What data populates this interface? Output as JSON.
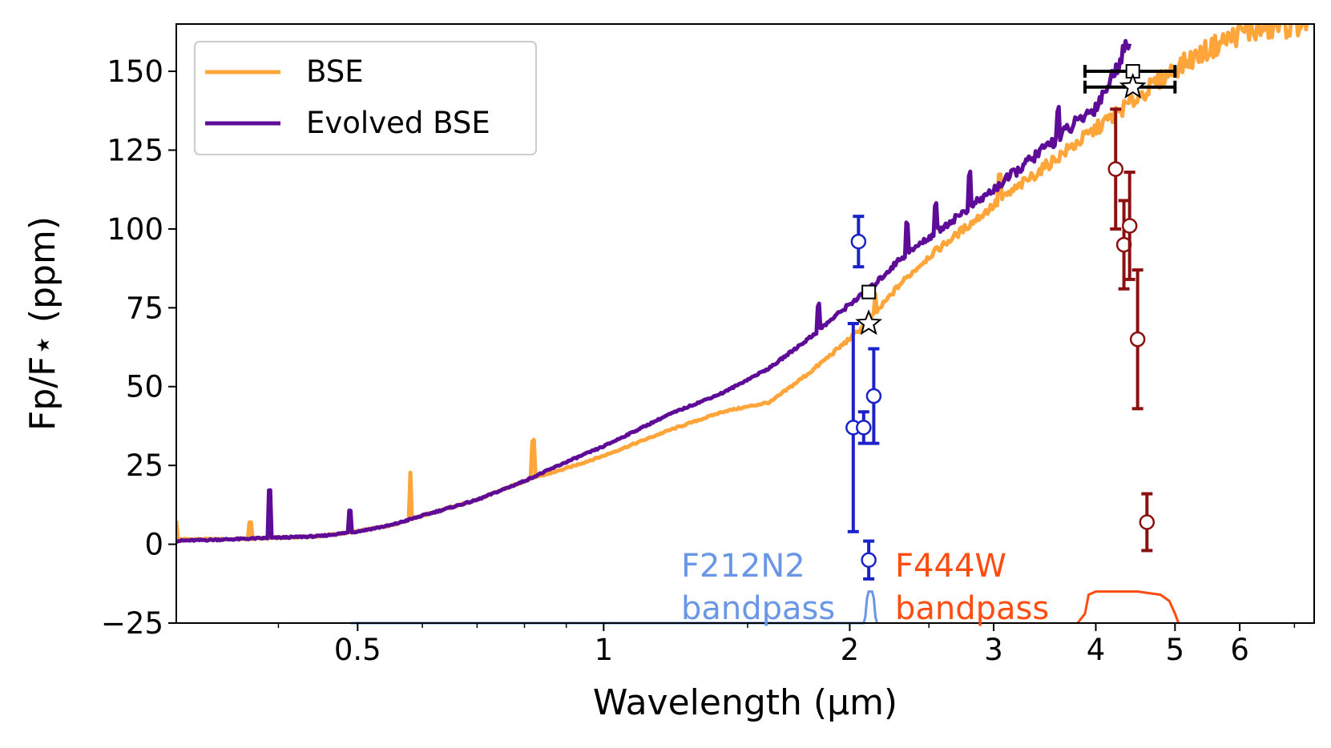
{
  "chart_data": {
    "type": "line",
    "xlabel": "Wavelength (μm)",
    "ylabel": "Fp/F⋆ (ppm)",
    "xscale": "log",
    "xlim": [
      0.3,
      7.4
    ],
    "ylim": [
      -25,
      165
    ],
    "xticks": [
      {
        "v": 0.5,
        "label": "0.5"
      },
      {
        "v": 1,
        "label": "1"
      },
      {
        "v": 2,
        "label": "2"
      },
      {
        "v": 3,
        "label": "3"
      },
      {
        "v": 4,
        "label": "4"
      },
      {
        "v": 5,
        "label": "5"
      },
      {
        "v": 6,
        "label": "6"
      }
    ],
    "yticks": [
      {
        "v": -25,
        "label": "−25"
      },
      {
        "v": 0,
        "label": "0"
      },
      {
        "v": 25,
        "label": "25"
      },
      {
        "v": 50,
        "label": "50"
      },
      {
        "v": 75,
        "label": "75"
      },
      {
        "v": 100,
        "label": "100"
      },
      {
        "v": 125,
        "label": "125"
      },
      {
        "v": 150,
        "label": "150"
      }
    ],
    "grid": false,
    "legend_position": "top-left",
    "series": [
      {
        "name": "BSE",
        "color": "#ffa53a",
        "x": [
          0.3,
          0.35,
          0.4,
          0.45,
          0.5,
          0.55,
          0.6,
          0.7,
          0.8,
          0.9,
          1.0,
          1.2,
          1.4,
          1.6,
          1.8,
          2.0,
          2.1,
          2.2,
          2.3,
          2.5,
          3.0,
          3.5,
          4.0,
          4.5,
          5.0,
          5.5,
          6.0,
          7.0,
          7.4
        ],
        "y": [
          1.5,
          1.5,
          2,
          2.5,
          4,
          6,
          9,
          14,
          20,
          24,
          28,
          36,
          42,
          45,
          55,
          65,
          70,
          76,
          82,
          91,
          107,
          120,
          131,
          141,
          150,
          156,
          161,
          164,
          165
        ]
      },
      {
        "name": "Evolved BSE",
        "color": "#5e0c98",
        "x": [
          0.3,
          0.35,
          0.4,
          0.45,
          0.5,
          0.55,
          0.6,
          0.7,
          0.8,
          0.9,
          1.0,
          1.2,
          1.4,
          1.6,
          1.8,
          2.0,
          2.1,
          2.2,
          2.3,
          2.5,
          3.0,
          3.5,
          4.0,
          4.2,
          4.4
        ],
        "y": [
          1,
          1.5,
          2,
          2.5,
          4,
          6,
          9,
          14,
          20,
          26,
          31,
          41,
          48,
          56,
          66,
          76,
          80,
          85,
          90,
          97,
          112,
          126,
          138,
          148,
          160
        ]
      }
    ],
    "spikes": [
      {
        "x": 0.3,
        "dy": 6,
        "series": "BSE"
      },
      {
        "x": 0.37,
        "dy": 5,
        "series": "BSE"
      },
      {
        "x": 0.58,
        "dy": 15,
        "series": "BSE"
      },
      {
        "x": 0.82,
        "dy": 12,
        "series": "BSE"
      },
      {
        "x": 2.15,
        "dy": 6,
        "series": "BSE"
      },
      {
        "x": 3.05,
        "dy": 8,
        "series": "BSE"
      },
      {
        "x": 0.39,
        "dy": 15,
        "series": "Evolved BSE"
      },
      {
        "x": 0.49,
        "dy": 7,
        "series": "Evolved BSE"
      },
      {
        "x": 1.83,
        "dy": 8,
        "series": "Evolved BSE"
      },
      {
        "x": 2.35,
        "dy": 10,
        "series": "Evolved BSE"
      },
      {
        "x": 2.55,
        "dy": 9,
        "series": "Evolved BSE"
      },
      {
        "x": 2.8,
        "dy": 10,
        "series": "Evolved BSE"
      },
      {
        "x": 3.6,
        "dy": 9,
        "series": "Evolved BSE"
      }
    ],
    "blue_points": {
      "color": "#1a22c8",
      "points": [
        {
          "x": 2.02,
          "y": 37,
          "err": 33
        },
        {
          "x": 2.05,
          "y": 96,
          "err": 8
        },
        {
          "x": 2.08,
          "y": 37,
          "err": 5
        },
        {
          "x": 2.11,
          "y": -5,
          "err": 6
        },
        {
          "x": 2.14,
          "y": 47,
          "err": 15
        }
      ]
    },
    "red_points": {
      "color": "#8b1010",
      "points": [
        {
          "x": 4.23,
          "y": 119,
          "err": 19
        },
        {
          "x": 4.33,
          "y": 95,
          "err": 14
        },
        {
          "x": 4.4,
          "y": 101,
          "err": 17
        },
        {
          "x": 4.5,
          "y": 65,
          "err": 22
        },
        {
          "x": 4.62,
          "y": 7,
          "err": 9
        }
      ]
    },
    "band_averages": [
      {
        "x": 2.11,
        "y": 80,
        "marker": "square"
      },
      {
        "x": 2.11,
        "y": 70,
        "marker": "star"
      },
      {
        "x": 4.44,
        "y": 150,
        "marker": "square",
        "xerr": [
          3.88,
          5.0
        ]
      },
      {
        "x": 4.44,
        "y": 145,
        "marker": "star",
        "xerr": [
          3.88,
          5.0
        ]
      }
    ],
    "bandpasses": [
      {
        "name": "F212N2",
        "line1": "F212N2",
        "line2": "bandpass",
        "color": "#6a96e6",
        "x": [
          0.49,
          1.5,
          2.08,
          2.09,
          2.1,
          2.11,
          2.13,
          2.14,
          2.15,
          2.16
        ],
        "y": [
          -25,
          -25,
          -25,
          -23,
          -17,
          -15,
          -15,
          -17,
          -23,
          -25
        ]
      },
      {
        "name": "F444W",
        "line1": "F444W",
        "line2": "bandpass",
        "color": "#ff4d12",
        "x": [
          3.8,
          3.88,
          3.92,
          4.0,
          4.2,
          4.5,
          4.8,
          4.92,
          5.0,
          5.05
        ],
        "y": [
          -25,
          -22,
          -16,
          -15,
          -15,
          -15,
          -16,
          -18,
          -22,
          -25
        ]
      }
    ]
  }
}
